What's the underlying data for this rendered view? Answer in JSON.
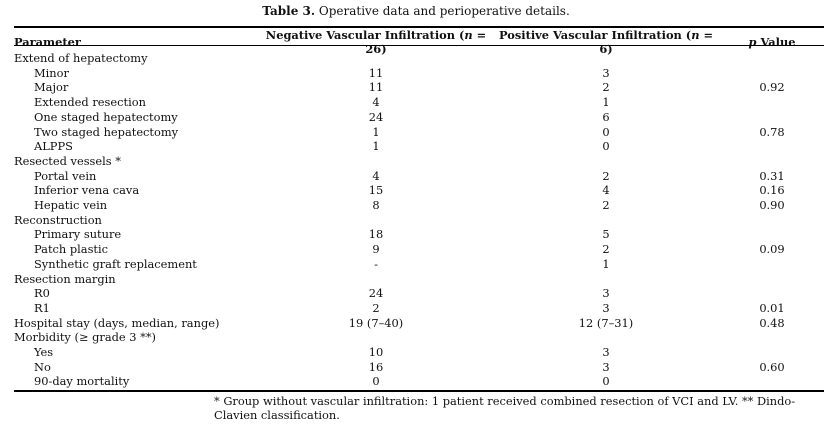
{
  "caption": {
    "label": "Table 3.",
    "text": " Operative data and perioperative details."
  },
  "headers": {
    "parameter": "Parameter",
    "neg_pre": "Negative Vascular Infiltration (",
    "neg_n": "n",
    "neg_post": " = 26)",
    "pos_pre": "Positive Vascular Infiltration (",
    "pos_n": "n",
    "pos_post": " = 6)",
    "p_italic": "p",
    "p_rest": " Value"
  },
  "rows": [
    {
      "label": "Extend of hepatectomy",
      "neg": "",
      "pos": "",
      "p": ""
    },
    {
      "label": "Minor",
      "neg": "11",
      "pos": "3",
      "p": ""
    },
    {
      "label": "Major",
      "neg": "11",
      "pos": "2",
      "p": "0.92"
    },
    {
      "label": "Extended resection",
      "neg": "4",
      "pos": "1",
      "p": ""
    },
    {
      "label": "One staged hepatectomy",
      "neg": "24",
      "pos": "6",
      "p": ""
    },
    {
      "label": "Two staged hepatectomy",
      "neg": "1",
      "pos": "0",
      "p": "0.78"
    },
    {
      "label": "ALPPS",
      "neg": "1",
      "pos": "0",
      "p": ""
    },
    {
      "label": "Resected vessels *",
      "neg": "",
      "pos": "",
      "p": ""
    },
    {
      "label": "Portal vein",
      "neg": "4",
      "pos": "2",
      "p": "0.31"
    },
    {
      "label": "Inferior vena cava",
      "neg": "15",
      "pos": "4",
      "p": "0.16"
    },
    {
      "label": "Hepatic vein",
      "neg": "8",
      "pos": "2",
      "p": "0.90"
    },
    {
      "label": "Reconstruction",
      "neg": "",
      "pos": "",
      "p": ""
    },
    {
      "label": "Primary suture",
      "neg": "18",
      "pos": "5",
      "p": ""
    },
    {
      "label": "Patch plastic",
      "neg": "9",
      "pos": "2",
      "p": "0.09"
    },
    {
      "label": "Synthetic graft replacement",
      "neg": "-",
      "pos": "1",
      "p": ""
    },
    {
      "label": "Resection margin",
      "neg": "",
      "pos": "",
      "p": ""
    },
    {
      "label": "R0",
      "neg": "24",
      "pos": "3",
      "p": ""
    },
    {
      "label": "R1",
      "neg": "2",
      "pos": "3",
      "p": "0.01"
    },
    {
      "label": "Hospital stay (days, median, range)",
      "neg": "19 (7–40)",
      "pos": "12 (7–31)",
      "p": "0.48"
    },
    {
      "label": "Morbidity (≥ grade 3 **)",
      "neg": "",
      "pos": "",
      "p": ""
    },
    {
      "label": "Yes",
      "neg": "10",
      "pos": "3",
      "p": ""
    },
    {
      "label": "No",
      "neg": "16",
      "pos": "3",
      "p": "0.60"
    },
    {
      "label": "90-day mortality",
      "neg": "0",
      "pos": "0",
      "p": ""
    }
  ],
  "footnote": "* Group without vascular infiltration: 1 patient received combined resection of VCI and LV. ** Dindo-Clavien classification."
}
